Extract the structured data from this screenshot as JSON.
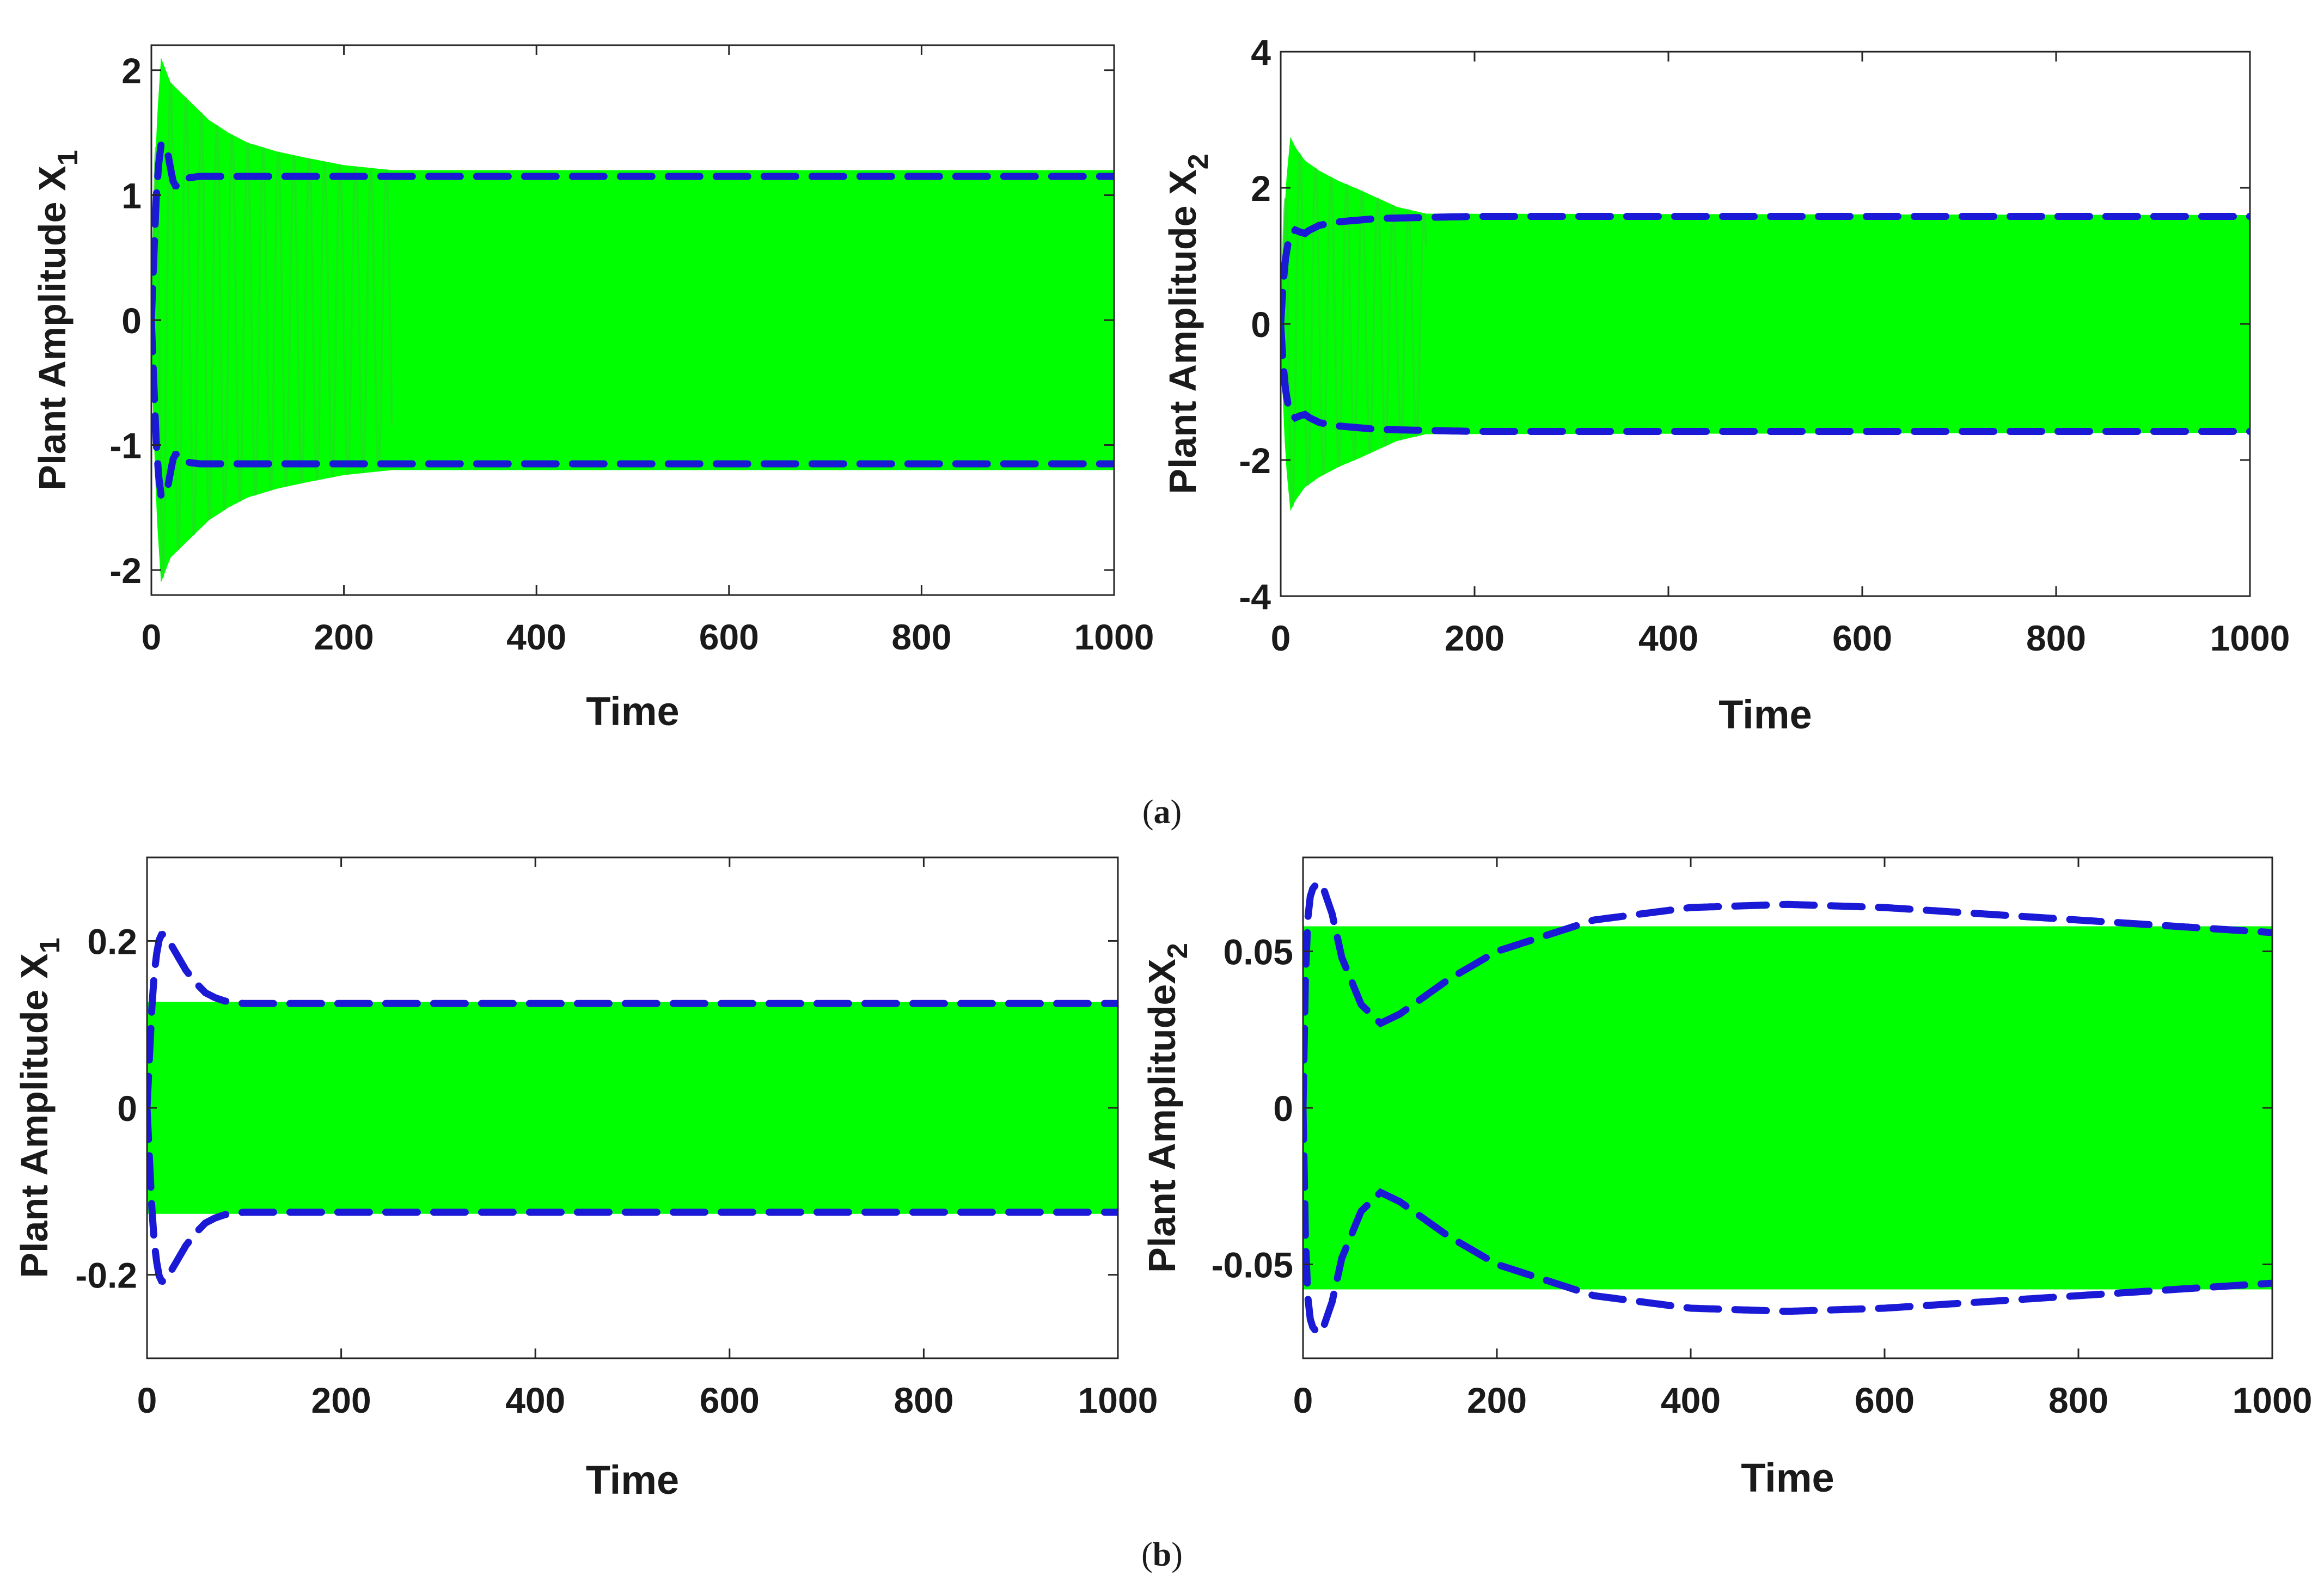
{
  "colors": {
    "signal": "#00ff00",
    "envelope": "#1a1ad6",
    "axis": "#262626",
    "background": "#ffffff"
  },
  "captions": {
    "a": {
      "open": "(",
      "letter": "a",
      "close": ")"
    },
    "b": {
      "open": "(",
      "letter": "b",
      "close": ")"
    }
  },
  "chart_data": [
    {
      "id": "a-left",
      "panel": "a",
      "type": "line",
      "xlabel": "Time",
      "ylabel_text": "Plant Amplitude X",
      "ylabel_sub": "1",
      "xlim": [
        0,
        1000
      ],
      "ylim": [
        -2.2,
        2.2
      ],
      "xticks": [
        0,
        200,
        400,
        600,
        800,
        1000
      ],
      "yticks": [
        -2,
        -1,
        0,
        1,
        2
      ],
      "ytick_labels": [
        "-2",
        "-1",
        "0",
        "1",
        "2"
      ],
      "grid": false,
      "series": [
        {
          "name": "plant response (oscillating)",
          "style": "solid-fill",
          "steady_amplitude": 1.2,
          "transient_peak": 2.1,
          "transient_end": 250,
          "envelope_x": [
            0,
            5,
            10,
            15,
            20,
            40,
            60,
            80,
            100,
            130,
            160,
            200,
            250,
            1000
          ],
          "envelope_y": [
            0.3,
            1.5,
            2.1,
            2.0,
            1.9,
            1.75,
            1.6,
            1.5,
            1.42,
            1.35,
            1.3,
            1.24,
            1.2,
            1.2
          ]
        },
        {
          "name": "estimated envelope",
          "style": "dashed",
          "x": [
            0,
            3,
            6,
            10,
            14,
            18,
            22,
            26,
            30,
            35,
            40,
            50,
            1000
          ],
          "y": [
            0,
            0.6,
            1.15,
            1.4,
            1.42,
            1.3,
            1.12,
            1.06,
            1.09,
            1.13,
            1.14,
            1.15,
            1.15
          ]
        }
      ]
    },
    {
      "id": "a-right",
      "panel": "a",
      "type": "line",
      "xlabel": "Time",
      "ylabel_text": "Plant Amplitude X",
      "ylabel_sub": "2",
      "xlim": [
        0,
        1000
      ],
      "ylim": [
        -4,
        4
      ],
      "xticks": [
        0,
        200,
        400,
        600,
        800,
        1000
      ],
      "yticks": [
        -4,
        -2,
        0,
        2,
        4
      ],
      "ytick_labels": [
        "-4",
        "-2",
        "0",
        "2",
        "4"
      ],
      "grid": false,
      "series": [
        {
          "name": "plant response (oscillating)",
          "style": "solid-fill",
          "steady_amplitude": 1.6,
          "transient_peak": 2.75,
          "transient_end": 150,
          "envelope_x": [
            0,
            5,
            10,
            15,
            25,
            40,
            60,
            80,
            100,
            120,
            150,
            1000
          ],
          "envelope_y": [
            0.4,
            2.0,
            2.75,
            2.6,
            2.4,
            2.25,
            2.1,
            1.98,
            1.85,
            1.72,
            1.62,
            1.6
          ]
        },
        {
          "name": "estimated envelope",
          "style": "dashed",
          "x": [
            0,
            3,
            6,
            10,
            15,
            20,
            25,
            30,
            40,
            60,
            100,
            200,
            1000
          ],
          "y": [
            0,
            0.7,
            1.1,
            1.3,
            1.38,
            1.35,
            1.33,
            1.38,
            1.45,
            1.5,
            1.55,
            1.58,
            1.58
          ]
        }
      ]
    },
    {
      "id": "b-left",
      "panel": "b",
      "type": "line",
      "xlabel": "Time",
      "ylabel_text": "Plant Amplitude X",
      "ylabel_sub": "1",
      "xlim": [
        0,
        1000
      ],
      "ylim": [
        -0.3,
        0.3
      ],
      "xticks": [
        0,
        200,
        400,
        600,
        800,
        1000
      ],
      "yticks": [
        -0.2,
        0,
        0.2
      ],
      "ytick_labels": [
        "-0.2",
        "0",
        "0.2"
      ],
      "grid": false,
      "series": [
        {
          "name": "plant response (oscillating)",
          "style": "solid-fill",
          "steady_amplitude": 0.127,
          "envelope_x": [
            0,
            1000
          ],
          "envelope_y": [
            0.127,
            0.127
          ]
        },
        {
          "name": "estimated envelope",
          "style": "dashed",
          "x": [
            0,
            2,
            5,
            8,
            12,
            16,
            20,
            25,
            30,
            40,
            50,
            60,
            70,
            80,
            90,
            100,
            1000
          ],
          "y": [
            0,
            0.05,
            0.12,
            0.17,
            0.2,
            0.21,
            0.205,
            0.195,
            0.185,
            0.165,
            0.15,
            0.138,
            0.132,
            0.128,
            0.126,
            0.125,
            0.125
          ]
        }
      ]
    },
    {
      "id": "b-right",
      "panel": "b",
      "type": "line",
      "xlabel": "Time",
      "ylabel_text": "Plant Amplitude",
      "ylabel_sub": "2",
      "ylabel_glued_x": "X",
      "xlim": [
        0,
        1000
      ],
      "ylim": [
        -0.08,
        0.08
      ],
      "xticks": [
        0,
        200,
        400,
        600,
        800,
        1000
      ],
      "yticks": [
        -0.05,
        0,
        0.05
      ],
      "ytick_labels": [
        "-0.05",
        "0",
        "0.05"
      ],
      "grid": false,
      "series": [
        {
          "name": "plant response (oscillating)",
          "style": "solid-fill",
          "steady_amplitude": 0.058,
          "envelope_x": [
            0,
            1000
          ],
          "envelope_y": [
            0.058,
            0.058
          ]
        },
        {
          "name": "estimated envelope",
          "style": "dashed",
          "x": [
            0,
            3,
            6,
            10,
            15,
            20,
            30,
            40,
            60,
            80,
            100,
            150,
            200,
            300,
            400,
            500,
            600,
            700,
            800,
            900,
            1000
          ],
          "y": [
            0,
            0.05,
            0.066,
            0.07,
            0.072,
            0.071,
            0.062,
            0.048,
            0.033,
            0.027,
            0.03,
            0.041,
            0.05,
            0.06,
            0.064,
            0.065,
            0.064,
            0.062,
            0.06,
            0.058,
            0.056
          ]
        }
      ]
    }
  ]
}
